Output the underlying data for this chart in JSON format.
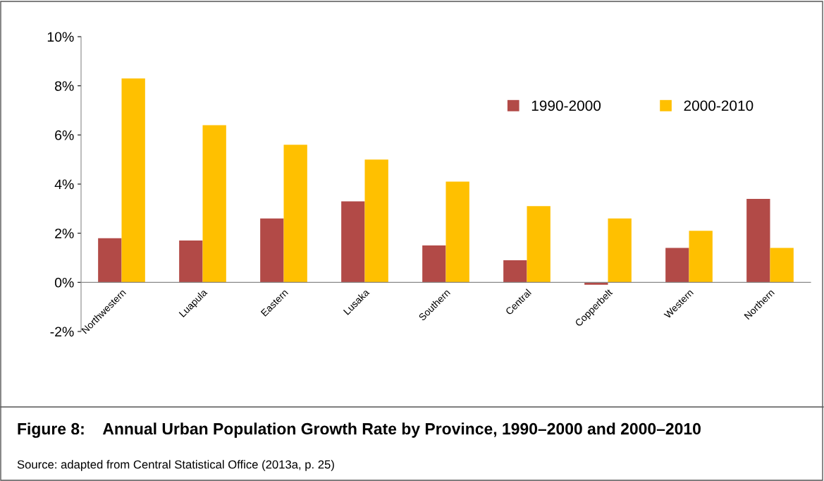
{
  "chart_data": {
    "type": "bar",
    "title": "Figure 8:    Annual Urban Population Growth Rate by Province, 1990–2000 and 2000–2010",
    "categories": [
      "Northwestern",
      "Luapula",
      "Eastern",
      "Lusaka",
      "Southern",
      "Central",
      "Copperbelt",
      "Western",
      "Northern"
    ],
    "series": [
      {
        "name": "1990-2000",
        "color": "#b24a47",
        "values": [
          1.8,
          1.7,
          2.6,
          3.3,
          1.5,
          0.9,
          -0.1,
          1.4,
          3.4
        ]
      },
      {
        "name": "2000-2010",
        "color": "#ffc000",
        "values": [
          8.3,
          6.4,
          5.6,
          5.0,
          4.1,
          3.1,
          2.6,
          2.1,
          1.4
        ]
      }
    ],
    "ylim": [
      -2,
      10
    ],
    "yticks": [
      {
        "value": -2,
        "label": "-2%"
      },
      {
        "value": 0,
        "label": "0%"
      },
      {
        "value": 2,
        "label": "2%"
      },
      {
        "value": 4,
        "label": "4%"
      },
      {
        "value": 6,
        "label": "6%"
      },
      {
        "value": 8,
        "label": "8%"
      },
      {
        "value": 10,
        "label": "10%"
      }
    ],
    "grid": false,
    "legend": "top right",
    "annotations": [
      "Source: adapted from Central Statistical Office (2013a, p. 25)"
    ]
  }
}
